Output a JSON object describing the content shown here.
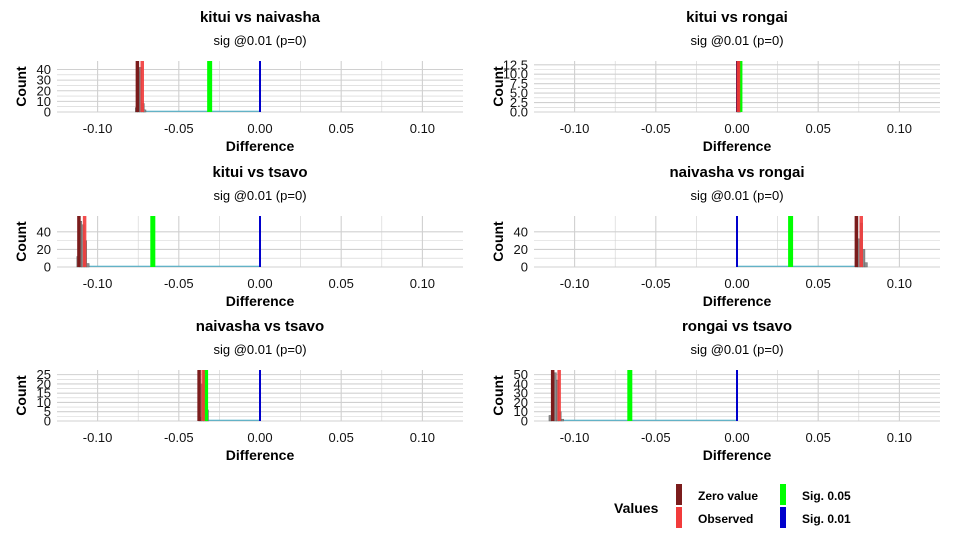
{
  "chart_data": [
    {
      "type": "histogram",
      "title": "kitui vs naivasha",
      "subtitle": "sig @0.01 (p=0)",
      "xlabel": "Difference",
      "ylabel": "Count",
      "xlim": [
        -0.125,
        0.125
      ],
      "xticks": [
        -0.1,
        -0.05,
        0.0,
        0.05,
        0.1
      ],
      "xtick_labels": [
        "-0.10",
        "-0.05",
        "0.00",
        "0.05",
        "0.10"
      ],
      "ylim": [
        0,
        48
      ],
      "yticks": [
        0,
        10,
        20,
        30,
        40
      ],
      "ytick_labels": [
        "0",
        "10",
        "20",
        "30",
        "40"
      ],
      "bars": [
        {
          "x": -0.076,
          "count": 4
        },
        {
          "x": -0.075,
          "count": 38
        },
        {
          "x": -0.0735,
          "count": 42
        },
        {
          "x": -0.072,
          "count": 8
        },
        {
          "x": -0.071,
          "count": 2
        }
      ],
      "lines": {
        "zero_value": -0.0755,
        "observed": -0.0725,
        "sig_05": -0.031,
        "sig_01": 0.0
      }
    },
    {
      "type": "histogram",
      "title": "kitui vs rongai",
      "subtitle": "sig @0.01 (p=0)",
      "xlabel": "Difference",
      "ylabel": "Count",
      "xlim": [
        -0.125,
        0.125
      ],
      "xticks": [
        -0.1,
        -0.05,
        0.0,
        0.05,
        0.1
      ],
      "xtick_labels": [
        "-0.10",
        "-0.05",
        "0.00",
        "0.05",
        "0.10"
      ],
      "ylim": [
        0,
        13.5
      ],
      "yticks": [
        0,
        2.5,
        5,
        7.5,
        10,
        12.5
      ],
      "ytick_labels": [
        "0.0",
        "2.5",
        "5.0",
        "7.5",
        "10.0",
        "12.5"
      ],
      "bars": [
        {
          "x": 0.0004,
          "count": 3
        },
        {
          "x": 0.0008,
          "count": 11
        },
        {
          "x": 0.0012,
          "count": 12
        },
        {
          "x": 0.0016,
          "count": 4
        }
      ],
      "lines": {
        "zero_value": 0.0006,
        "observed": 0.0009,
        "sig_05": 0.0018,
        "sig_01": 0.0
      }
    },
    {
      "type": "histogram",
      "title": "kitui vs tsavo",
      "subtitle": "sig @0.01 (p=0)",
      "xlabel": "Difference",
      "ylabel": "Count",
      "xlim": [
        -0.125,
        0.125
      ],
      "xticks": [
        -0.1,
        -0.05,
        0.0,
        0.05,
        0.1
      ],
      "xtick_labels": [
        "-0.10",
        "-0.05",
        "0.00",
        "0.05",
        "0.10"
      ],
      "ylim": [
        0,
        58
      ],
      "yticks": [
        0,
        20,
        40
      ],
      "ytick_labels": [
        "0",
        "20",
        "40"
      ],
      "bars": [
        {
          "x": -0.112,
          "count": 12
        },
        {
          "x": -0.1105,
          "count": 52
        },
        {
          "x": -0.109,
          "count": 48
        },
        {
          "x": -0.1075,
          "count": 30
        },
        {
          "x": -0.106,
          "count": 4
        }
      ],
      "lines": {
        "zero_value": -0.1115,
        "observed": -0.108,
        "sig_05": -0.066,
        "sig_01": 0.0
      }
    },
    {
      "type": "histogram",
      "title": "naivasha vs rongai",
      "subtitle": "sig @0.01 (p=0)",
      "xlabel": "Difference",
      "ylabel": "Count",
      "xlim": [
        -0.125,
        0.125
      ],
      "xticks": [
        -0.1,
        -0.05,
        0.0,
        0.05,
        0.1
      ],
      "xtick_labels": [
        "-0.10",
        "-0.05",
        "0.00",
        "0.05",
        "0.10"
      ],
      "ylim": [
        0,
        58
      ],
      "yticks": [
        0,
        20,
        40
      ],
      "ytick_labels": [
        "0",
        "20",
        "40"
      ],
      "bars": [
        {
          "x": 0.0735,
          "count": 6
        },
        {
          "x": 0.075,
          "count": 32
        },
        {
          "x": 0.0765,
          "count": 50
        },
        {
          "x": 0.078,
          "count": 20
        },
        {
          "x": 0.0795,
          "count": 5
        }
      ],
      "lines": {
        "zero_value": 0.0735,
        "observed": 0.0765,
        "sig_05": 0.033,
        "sig_01": 0.0
      }
    },
    {
      "type": "histogram",
      "title": "naivasha vs tsavo",
      "subtitle": "sig @0.01 (p=0)",
      "xlabel": "Difference",
      "ylabel": "Count",
      "xlim": [
        -0.125,
        0.125
      ],
      "xticks": [
        -0.1,
        -0.05,
        0.0,
        0.05,
        0.1
      ],
      "xtick_labels": [
        "-0.10",
        "-0.05",
        "0.00",
        "0.05",
        "0.10"
      ],
      "ylim": [
        0,
        27.5
      ],
      "yticks": [
        0,
        5,
        10,
        15,
        20,
        25
      ],
      "ytick_labels": [
        "0",
        "5",
        "10",
        "15",
        "20",
        "25"
      ],
      "bars": [
        {
          "x": -0.037,
          "count": 2
        },
        {
          "x": -0.0355,
          "count": 20
        },
        {
          "x": -0.034,
          "count": 24
        },
        {
          "x": -0.0325,
          "count": 6
        }
      ],
      "lines": {
        "zero_value": -0.0375,
        "observed": -0.035,
        "sig_05": -0.0335,
        "sig_01": 0.0
      }
    },
    {
      "type": "histogram",
      "title": "rongai vs tsavo",
      "subtitle": "sig @0.01 (p=0)",
      "xlabel": "Difference",
      "ylabel": "Count",
      "xlim": [
        -0.125,
        0.125
      ],
      "xticks": [
        -0.1,
        -0.05,
        0.0,
        0.05,
        0.1
      ],
      "xtick_labels": [
        "-0.10",
        "-0.05",
        "0.00",
        "0.05",
        "0.10"
      ],
      "ylim": [
        0,
        55
      ],
      "yticks": [
        0,
        10,
        20,
        30,
        40,
        50
      ],
      "ytick_labels": [
        "0",
        "10",
        "20",
        "30",
        "40",
        "50"
      ],
      "bars": [
        {
          "x": -0.115,
          "count": 6
        },
        {
          "x": -0.1135,
          "count": 48
        },
        {
          "x": -0.112,
          "count": 52
        },
        {
          "x": -0.1105,
          "count": 44
        },
        {
          "x": -0.109,
          "count": 10
        },
        {
          "x": -0.1075,
          "count": 2
        }
      ],
      "lines": {
        "zero_value": -0.1135,
        "observed": -0.1095,
        "sig_05": -0.066,
        "sig_01": 0.0
      }
    }
  ],
  "legend": {
    "title": "Values",
    "items": [
      {
        "key": "zero_value",
        "label": "Zero value",
        "color": "#7b1c1c"
      },
      {
        "key": "observed",
        "label": "Observed",
        "color": "#f23b3b"
      },
      {
        "key": "sig_05",
        "label": "Sig.  0.05",
        "color": "#00ff00"
      },
      {
        "key": "sig_01",
        "label": "Sig.  0.01",
        "color": "#0000cc"
      }
    ]
  },
  "colors": {
    "bar_fill": "#8c8c8c",
    "bar_stroke": "#5a5a5a",
    "baseline": "#3fa7c2",
    "grid": "#d0d0d0"
  }
}
